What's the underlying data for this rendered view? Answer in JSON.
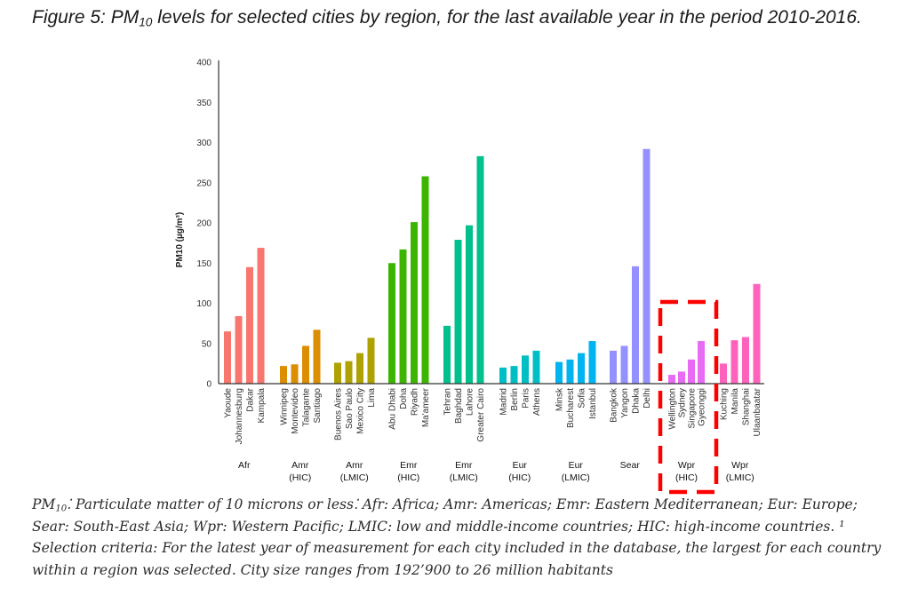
{
  "title": {
    "prefix": "Figure 5: PM",
    "sub": "10",
    "suffix": " levels for selected cities by region, for the last available year in the period 2010-2016."
  },
  "caption": {
    "prefix": "PM",
    "sub": "10",
    "body": "⁚ Particulate matter of 10 microns or less⁚ Afr: Africa; Amr: Americas; Emr: Eastern Mediterranean; Eur: Europe; Sear: South-East Asia; Wpr: Western Pacific; LMIC: low and middle-income countries; HIC: high-income countries. ¹ Selection criteria: For the latest year of measurement for each city included in the database, the largest for each country within a region was selected. City size ranges from 192’900 to 26 million habitants"
  },
  "chart_data": {
    "type": "bar",
    "title": "PM10 levels for selected cities by region",
    "xlabel": "",
    "ylabel": "PM10 (µg/m³)",
    "ylim": [
      0,
      400
    ],
    "yticks": [
      0,
      50,
      100,
      150,
      200,
      250,
      300,
      350,
      400
    ],
    "grid": false,
    "highlight_group": "Wpr (HIC)",
    "highlight_color": "#ff0000",
    "groups": [
      {
        "label": "Afr",
        "sublabel": "",
        "color": "#f8766d",
        "cities": [
          "Yaoude",
          "Johannesburg",
          "Dakar",
          "Kampala"
        ],
        "values": [
          65,
          84,
          145,
          169
        ]
      },
      {
        "label": "Amr",
        "sublabel": "(HIC)",
        "color": "#db8e00",
        "cities": [
          "Winnipeg",
          "Montevideo",
          "Talagante",
          "Santiago"
        ],
        "values": [
          22,
          24,
          47,
          67
        ]
      },
      {
        "label": "Amr",
        "sublabel": "(LMIC)",
        "color": "#aea200",
        "cities": [
          "Buenos Aires",
          "Sao Paulo",
          "Mexico City",
          "Lima"
        ],
        "values": [
          26,
          28,
          38,
          57
        ]
      },
      {
        "label": "Emr",
        "sublabel": "(HIC)",
        "color": "#3cb500",
        "cities": [
          "Abu Dhabi",
          "Doha",
          "Riyadh",
          "Ma'ameer"
        ],
        "values": [
          150,
          167,
          201,
          258
        ]
      },
      {
        "label": "Emr",
        "sublabel": "(LMIC)",
        "color": "#00c08b",
        "cities": [
          "Tehran",
          "Baghdad",
          "Lahore",
          "Greater Cairo"
        ],
        "values": [
          72,
          179,
          197,
          283
        ]
      },
      {
        "label": "Eur",
        "sublabel": "(HIC)",
        "color": "#00bfc4",
        "cities": [
          "Madrid",
          "Berlin",
          "Paris",
          "Athens"
        ],
        "values": [
          20,
          22,
          35,
          41
        ]
      },
      {
        "label": "Eur",
        "sublabel": "(LMIC)",
        "color": "#00b4f0",
        "cities": [
          "Minsk",
          "Bucharest",
          "Sofia",
          "Istanbul"
        ],
        "values": [
          27,
          30,
          38,
          53
        ]
      },
      {
        "label": "Sear",
        "sublabel": "",
        "color": "#9590ff",
        "cities": [
          "Bangkok",
          "Yangon",
          "Dhaka",
          "Delhi"
        ],
        "values": [
          41,
          47,
          146,
          292
        ]
      },
      {
        "label": "Wpr",
        "sublabel": "(HIC)",
        "color": "#e76bf3",
        "cities": [
          "Wellington",
          "Sydney",
          "Singapore",
          "Gyeonggi"
        ],
        "values": [
          11,
          15,
          30,
          53
        ]
      },
      {
        "label": "Wpr",
        "sublabel": "(LMIC)",
        "color": "#ff62bc",
        "cities": [
          "Kuching",
          "Manila",
          "Shanghai",
          "Ulaanbaatar"
        ],
        "values": [
          25,
          54,
          58,
          124
        ]
      }
    ]
  }
}
